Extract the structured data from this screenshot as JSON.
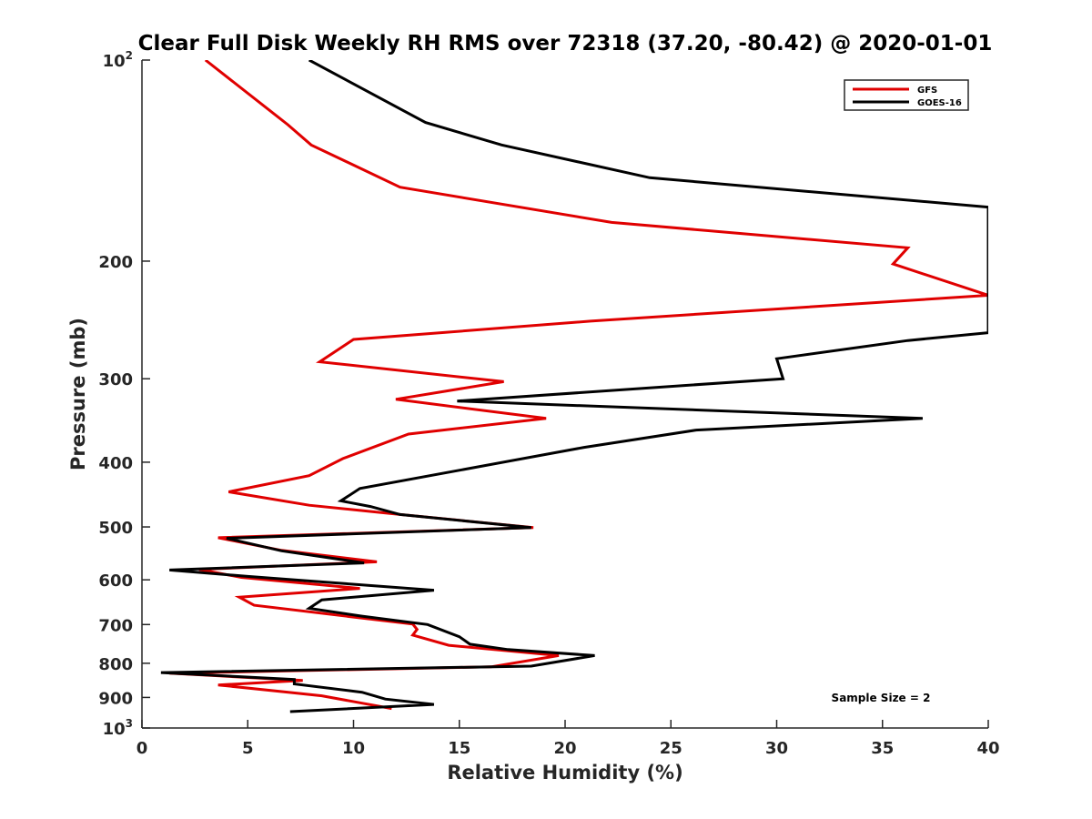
{
  "chart_data": {
    "type": "line",
    "title": "Clear Full Disk Weekly RH RMS over 72318 (37.20, -80.42) @ 2020-01-01",
    "xlabel": "Relative Humidity (%)",
    "ylabel": "Pressure (mb)",
    "xlim": [
      0,
      40
    ],
    "ylim": [
      100,
      1000
    ],
    "y_scale": "log",
    "y_reversed": true,
    "x_ticks": [
      0,
      5,
      10,
      15,
      20,
      25,
      30,
      35,
      40
    ],
    "x_tick_labels": [
      "0",
      "5",
      "10",
      "15",
      "20",
      "25",
      "30",
      "35",
      "40"
    ],
    "y_ticks": [
      100,
      200,
      300,
      400,
      500,
      600,
      700,
      800,
      900,
      1000
    ],
    "y_tick_labels": [
      {
        "base": "10",
        "exp": "2"
      },
      {
        "base": "200",
        "exp": ""
      },
      {
        "base": "300",
        "exp": ""
      },
      {
        "base": "400",
        "exp": ""
      },
      {
        "base": "500",
        "exp": ""
      },
      {
        "base": "600",
        "exp": ""
      },
      {
        "base": "700",
        "exp": ""
      },
      {
        "base": "800",
        "exp": ""
      },
      {
        "base": "900",
        "exp": ""
      },
      {
        "base": "10",
        "exp": "3"
      }
    ],
    "grid": false,
    "legend_position": "top-right",
    "annotation": "Sample Size = 2",
    "series": [
      {
        "name": "GFS",
        "color": "#e00000",
        "points": [
          {
            "x": 3.0,
            "p": 100
          },
          {
            "x": 6.9,
            "p": 125
          },
          {
            "x": 8.0,
            "p": 134
          },
          {
            "x": 12.2,
            "p": 155
          },
          {
            "x": 22.2,
            "p": 175
          },
          {
            "x": 36.2,
            "p": 191
          },
          {
            "x": 35.5,
            "p": 202
          },
          {
            "x": 40.0,
            "p": 225
          },
          {
            "x": 21.2,
            "p": 246
          },
          {
            "x": 10.0,
            "p": 262
          },
          {
            "x": 8.4,
            "p": 283
          },
          {
            "x": 17.1,
            "p": 303
          },
          {
            "x": 12.0,
            "p": 322
          },
          {
            "x": 19.1,
            "p": 344
          },
          {
            "x": 12.6,
            "p": 363
          },
          {
            "x": 9.5,
            "p": 395
          },
          {
            "x": 7.9,
            "p": 419
          },
          {
            "x": 4.1,
            "p": 443
          },
          {
            "x": 7.9,
            "p": 464
          },
          {
            "x": 12.2,
            "p": 479
          },
          {
            "x": 18.5,
            "p": 501
          },
          {
            "x": 3.6,
            "p": 519
          },
          {
            "x": 6.6,
            "p": 542
          },
          {
            "x": 11.1,
            "p": 564
          },
          {
            "x": 2.7,
            "p": 579
          },
          {
            "x": 4.7,
            "p": 595
          },
          {
            "x": 10.3,
            "p": 618
          },
          {
            "x": 4.6,
            "p": 637
          },
          {
            "x": 5.3,
            "p": 655
          },
          {
            "x": 12.8,
            "p": 699
          },
          {
            "x": 13.0,
            "p": 712
          },
          {
            "x": 12.8,
            "p": 726
          },
          {
            "x": 14.5,
            "p": 752
          },
          {
            "x": 19.7,
            "p": 779
          },
          {
            "x": 16.5,
            "p": 810
          },
          {
            "x": 1.3,
            "p": 828
          },
          {
            "x": 7.6,
            "p": 849
          },
          {
            "x": 3.6,
            "p": 862
          },
          {
            "x": 8.5,
            "p": 895
          },
          {
            "x": 10.4,
            "p": 918
          },
          {
            "x": 11.8,
            "p": 935
          }
        ]
      },
      {
        "name": "GOES-16",
        "color": "#000000",
        "points": [
          {
            "x": 7.9,
            "p": 100
          },
          {
            "x": 13.4,
            "p": 124
          },
          {
            "x": 17.0,
            "p": 134
          },
          {
            "x": 24.0,
            "p": 150
          },
          {
            "x": 40.0,
            "p": 166
          },
          {
            "x": 40.0,
            "p": 256
          },
          {
            "x": 36.2,
            "p": 263
          },
          {
            "x": 30.0,
            "p": 280
          },
          {
            "x": 30.3,
            "p": 300
          },
          {
            "x": 14.9,
            "p": 324
          },
          {
            "x": 36.9,
            "p": 344
          },
          {
            "x": 26.2,
            "p": 358
          },
          {
            "x": 20.9,
            "p": 380
          },
          {
            "x": 10.3,
            "p": 438
          },
          {
            "x": 9.4,
            "p": 457
          },
          {
            "x": 10.8,
            "p": 466
          },
          {
            "x": 12.2,
            "p": 479
          },
          {
            "x": 18.4,
            "p": 501
          },
          {
            "x": 4.0,
            "p": 520
          },
          {
            "x": 6.6,
            "p": 543
          },
          {
            "x": 10.5,
            "p": 566
          },
          {
            "x": 1.3,
            "p": 580
          },
          {
            "x": 5.0,
            "p": 593
          },
          {
            "x": 13.8,
            "p": 622
          },
          {
            "x": 8.5,
            "p": 643
          },
          {
            "x": 7.9,
            "p": 662
          },
          {
            "x": 10.4,
            "p": 680
          },
          {
            "x": 13.5,
            "p": 700
          },
          {
            "x": 15.0,
            "p": 730
          },
          {
            "x": 15.5,
            "p": 749
          },
          {
            "x": 17.3,
            "p": 763
          },
          {
            "x": 21.4,
            "p": 779
          },
          {
            "x": 18.4,
            "p": 808
          },
          {
            "x": 0.9,
            "p": 826
          },
          {
            "x": 7.2,
            "p": 846
          },
          {
            "x": 7.2,
            "p": 859
          },
          {
            "x": 10.4,
            "p": 884
          },
          {
            "x": 11.5,
            "p": 905
          },
          {
            "x": 13.8,
            "p": 922
          },
          {
            "x": 7.0,
            "p": 945
          }
        ]
      }
    ]
  }
}
